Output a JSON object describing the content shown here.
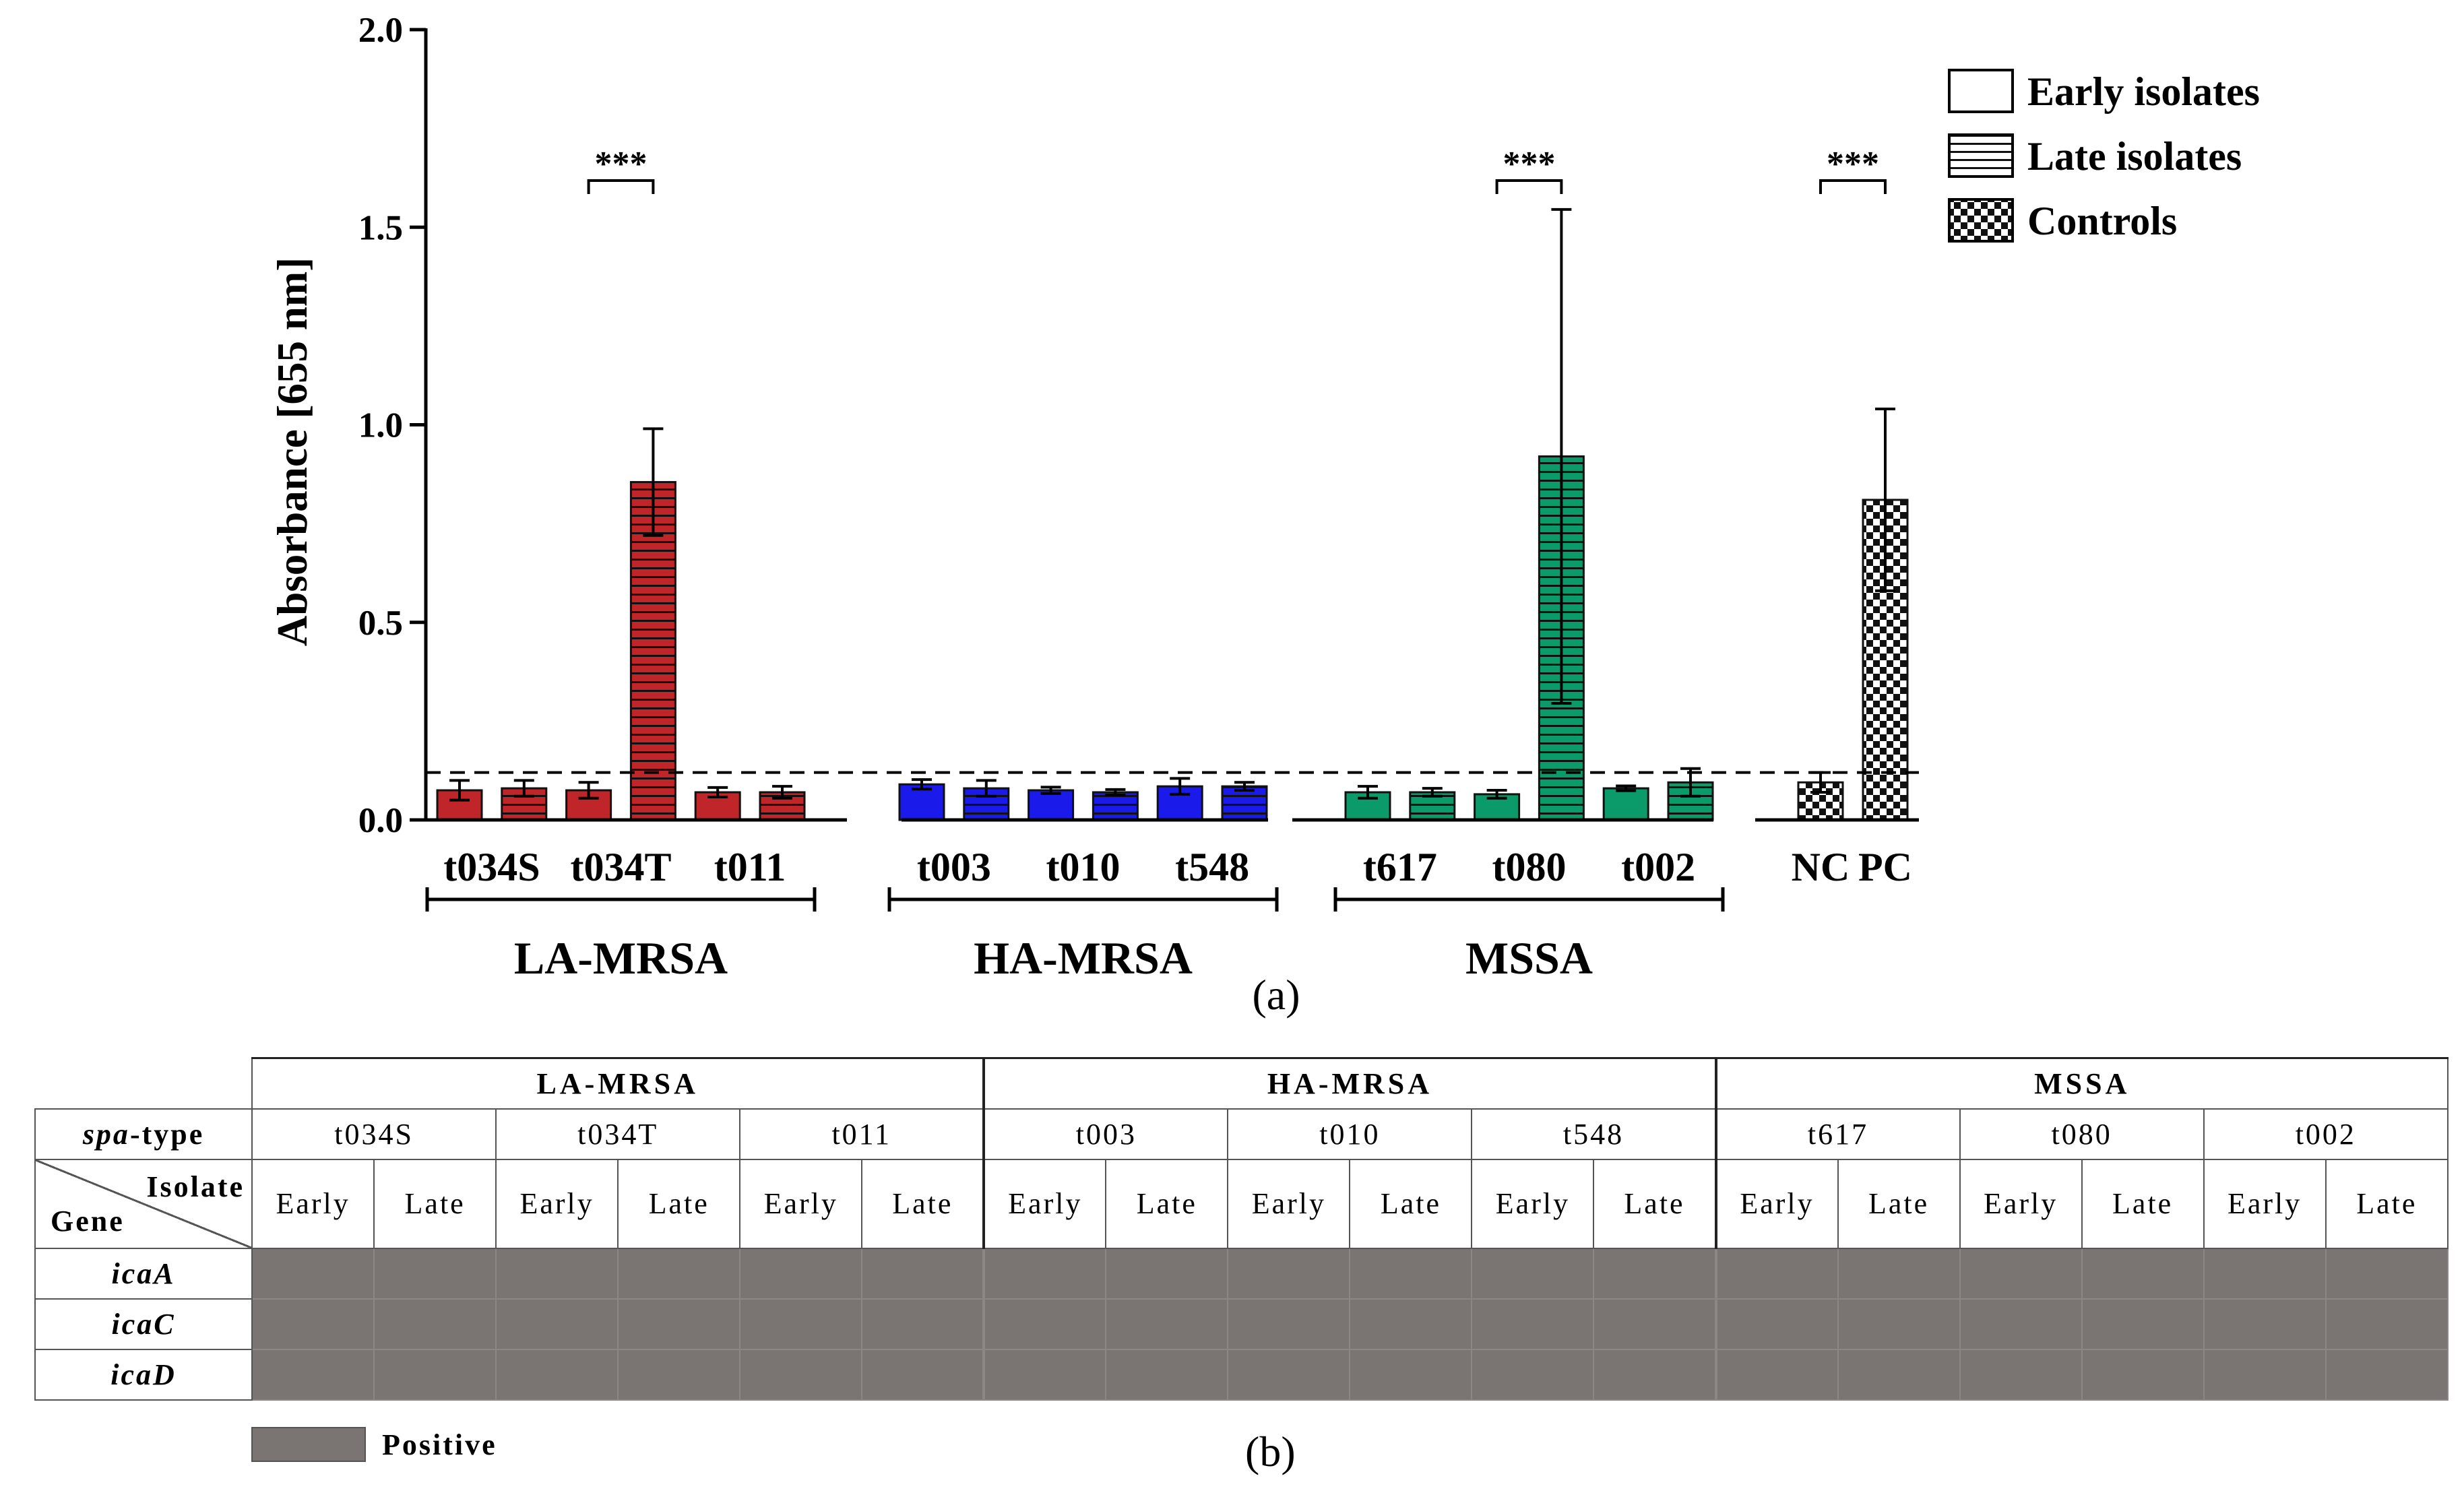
{
  "chart_data": {
    "type": "bar",
    "panel_label": "(a)",
    "ylabel": "Absorbance [655 nm]",
    "ylim": [
      0,
      2.0
    ],
    "yticks": [
      "0.0",
      "0.5",
      "1.0",
      "1.5",
      "2.0"
    ],
    "ytick_values": [
      0,
      0.5,
      1.0,
      1.5,
      2.0
    ],
    "cutoff_line": 0.12,
    "legend": [
      "Early isolates",
      "Late isolates",
      "Controls"
    ],
    "groups": [
      {
        "name": "LA-MRSA",
        "color": "#c0252a",
        "categories": [
          "t034S",
          "t034T",
          "t011"
        ],
        "early": [
          0.075,
          0.075,
          0.07
        ],
        "early_err": [
          0.025,
          0.02,
          0.012
        ],
        "late": [
          0.08,
          0.855,
          0.07
        ],
        "late_err": [
          0.02,
          0.135,
          0.015
        ]
      },
      {
        "name": "HA-MRSA",
        "color": "#1a1aea",
        "categories": [
          "t003",
          "t010",
          "t548"
        ],
        "early": [
          0.09,
          0.075,
          0.085
        ],
        "early_err": [
          0.012,
          0.008,
          0.02
        ],
        "late": [
          0.08,
          0.07,
          0.085
        ],
        "late_err": [
          0.02,
          0.007,
          0.01
        ]
      },
      {
        "name": "MSSA",
        "color": "#0b9b6a",
        "categories": [
          "t617",
          "t080",
          "t002"
        ],
        "early": [
          0.07,
          0.065,
          0.08
        ],
        "early_err": [
          0.015,
          0.01,
          0.006
        ],
        "late": [
          0.07,
          0.92,
          0.095
        ],
        "late_err": [
          0.01,
          0.625,
          0.035
        ]
      }
    ],
    "controls": {
      "categories": [
        "NC",
        "PC"
      ],
      "values": [
        0.095,
        0.81
      ],
      "errors": [
        0.025,
        0.23
      ]
    },
    "significance": [
      {
        "label": "***",
        "between": "t034T"
      },
      {
        "label": "***",
        "between": "t080"
      },
      {
        "label": "***",
        "between": "controls"
      }
    ]
  },
  "table": {
    "panel_label": "(b)",
    "groups": [
      "LA-MRSA",
      "HA-MRSA",
      "MSSA"
    ],
    "spa_header": {
      "italic": "spa",
      "rest": "-type"
    },
    "spa_types": [
      "t034S",
      "t034T",
      "t011",
      "t003",
      "t010",
      "t548",
      "t617",
      "t080",
      "t002"
    ],
    "isolate_label": "Isolate",
    "gene_label": "Gene",
    "early": "Early",
    "late": "Late",
    "genes": [
      "icaA",
      "icaC",
      "icaD"
    ],
    "legend_positive": "Positive"
  }
}
